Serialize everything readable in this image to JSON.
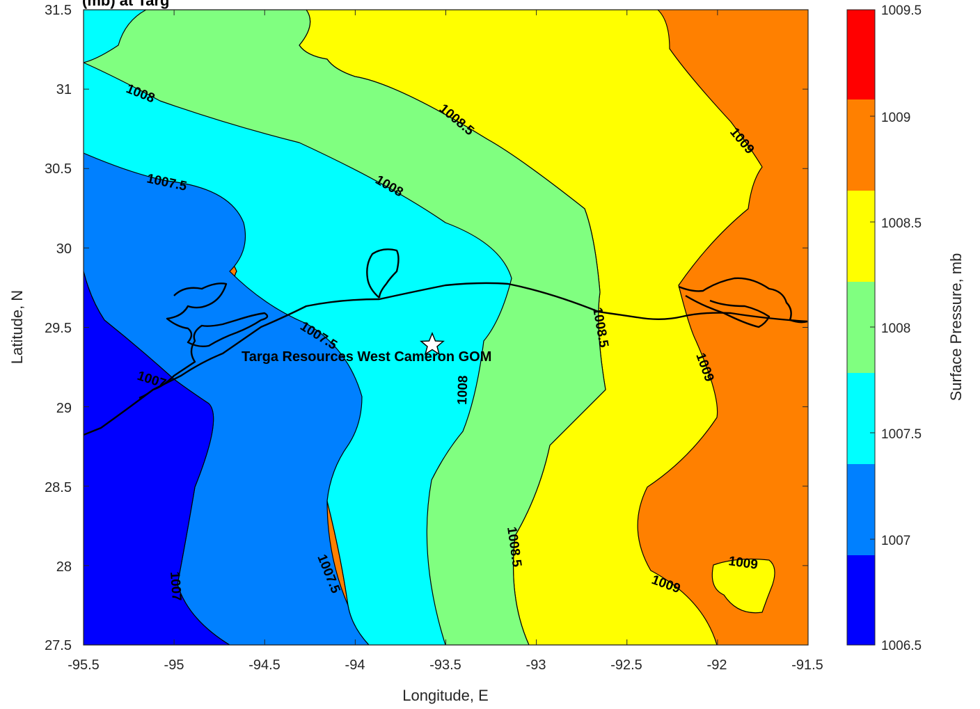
{
  "figure": {
    "title_visible_fragment": "(mb) at Targ",
    "site_label": "Targa Resources West Cameron GOM"
  },
  "axes": {
    "xlabel": "Longitude, E",
    "ylabel": "Latitude, N",
    "xticks": [
      "-95.5",
      "-95",
      "-94.5",
      "-94",
      "-93.5",
      "-93",
      "-92.5",
      "-92",
      "-91.5"
    ],
    "yticks": [
      "31.5",
      "31",
      "30.5",
      "30",
      "29.5",
      "29",
      "28.5",
      "28",
      "27.5"
    ]
  },
  "colorbar": {
    "label": "Surface Pressure, mb",
    "ticks": [
      "1009.5",
      "1009",
      "1008.5",
      "1008",
      "1007.5",
      "1007",
      "1006.5"
    ],
    "colors": [
      "#ff0000",
      "#ff8000",
      "#ffff00",
      "#80ff80",
      "#00ffff",
      "#0080ff",
      "#0000ff"
    ]
  },
  "contour_labels": [
    "1008",
    "1008.5",
    "1009",
    "1007.5",
    "1008",
    "1007.5",
    "1008.5",
    "1009",
    "1008",
    "1007",
    "1007",
    "1007.5",
    "1008.5",
    "1009",
    "1009"
  ],
  "chart_data": {
    "type": "contour",
    "xlabel": "Longitude, E",
    "ylabel": "Latitude, N",
    "xlim": [
      -95.5,
      -91.5
    ],
    "ylim": [
      27.5,
      31.5
    ],
    "clim": [
      1006.5,
      1009.5
    ],
    "levels": [
      1006.75,
      1007,
      1007.5,
      1008,
      1008.5,
      1009,
      1009.5
    ],
    "colorbar_label": "Surface Pressure, mb",
    "site": {
      "name": "Targa Resources West Cameron GOM",
      "lon": -93.57,
      "lat": 29.4
    }
  }
}
